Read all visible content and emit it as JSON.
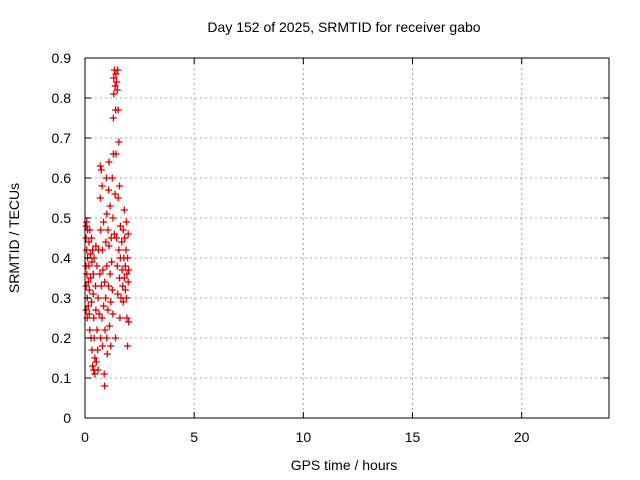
{
  "chart_data": {
    "type": "scatter",
    "title": "Day 152 of 2025, SRMTID for receiver gabo",
    "xlabel": "GPS time / hours",
    "ylabel": "SRMTID / TECUs",
    "xlim": [
      0,
      24
    ],
    "ylim": [
      0,
      0.9
    ],
    "xticks": [
      0,
      5,
      10,
      15,
      20
    ],
    "xtick_labels": [
      "0",
      "5",
      "10",
      "15",
      "20"
    ],
    "yticks": [
      0,
      0.1,
      0.2,
      0.3,
      0.4,
      0.5,
      0.6,
      0.7,
      0.8,
      0.9
    ],
    "ytick_labels": [
      "0",
      "0.1",
      "0.2",
      "0.3",
      "0.4",
      "0.5",
      "0.6",
      "0.7",
      "0.8",
      "0.9"
    ],
    "grid": true,
    "legend": false,
    "marker": "plus",
    "color": "#dd0000",
    "points": [
      [
        0.05,
        0.48
      ],
      [
        0.05,
        0.45
      ],
      [
        0.05,
        0.38
      ],
      [
        0.05,
        0.33
      ],
      [
        0.05,
        0.27
      ],
      [
        0.08,
        0.49
      ],
      [
        0.08,
        0.42
      ],
      [
        0.08,
        0.36
      ],
      [
        0.1,
        0.3
      ],
      [
        0.1,
        0.25
      ],
      [
        0.12,
        0.47
      ],
      [
        0.12,
        0.4
      ],
      [
        0.15,
        0.34
      ],
      [
        0.15,
        0.28
      ],
      [
        0.18,
        0.44
      ],
      [
        0.18,
        0.38
      ],
      [
        0.2,
        0.32
      ],
      [
        0.2,
        0.26
      ],
      [
        0.22,
        0.47
      ],
      [
        0.22,
        0.22
      ],
      [
        0.25,
        0.41
      ],
      [
        0.25,
        0.35
      ],
      [
        0.28,
        0.2
      ],
      [
        0.3,
        0.45
      ],
      [
        0.3,
        0.29
      ],
      [
        0.32,
        0.39
      ],
      [
        0.32,
        0.17
      ],
      [
        0.35,
        0.13
      ],
      [
        0.35,
        0.42
      ],
      [
        0.38,
        0.36
      ],
      [
        0.38,
        0.31
      ],
      [
        0.4,
        0.12
      ],
      [
        0.4,
        0.25
      ],
      [
        0.42,
        0.4
      ],
      [
        0.42,
        0.2
      ],
      [
        0.45,
        0.15
      ],
      [
        0.45,
        0.11
      ],
      [
        0.48,
        0.33
      ],
      [
        0.5,
        0.43
      ],
      [
        0.5,
        0.27
      ],
      [
        0.52,
        0.14
      ],
      [
        0.55,
        0.38
      ],
      [
        0.55,
        0.22
      ],
      [
        0.58,
        0.17
      ],
      [
        0.6,
        0.3
      ],
      [
        0.6,
        0.12
      ],
      [
        0.62,
        0.42
      ],
      [
        0.65,
        0.26
      ],
      [
        0.68,
        0.36
      ],
      [
        0.7,
        0.63
      ],
      [
        0.7,
        0.55
      ],
      [
        0.72,
        0.2
      ],
      [
        0.72,
        0.47
      ],
      [
        0.75,
        0.62
      ],
      [
        0.75,
        0.33
      ],
      [
        0.78,
        0.58
      ],
      [
        0.78,
        0.25
      ],
      [
        0.8,
        0.42
      ],
      [
        0.8,
        0.18
      ],
      [
        0.82,
        0.37
      ],
      [
        0.85,
        0.28
      ],
      [
        0.85,
        0.49
      ],
      [
        0.88,
        0.11
      ],
      [
        0.9,
        0.08
      ],
      [
        0.9,
        0.34
      ],
      [
        0.92,
        0.22
      ],
      [
        0.95,
        0.44
      ],
      [
        0.95,
        0.3
      ],
      [
        0.98,
        0.6
      ],
      [
        1.0,
        0.51
      ],
      [
        1.0,
        0.38
      ],
      [
        1.0,
        0.2
      ],
      [
        1.02,
        0.16
      ],
      [
        1.05,
        0.47
      ],
      [
        1.05,
        0.27
      ],
      [
        1.08,
        0.57
      ],
      [
        1.08,
        0.33
      ],
      [
        1.1,
        0.64
      ],
      [
        1.1,
        0.43
      ],
      [
        1.12,
        0.23
      ],
      [
        1.15,
        0.53
      ],
      [
        1.15,
        0.36
      ],
      [
        1.18,
        0.29
      ],
      [
        1.18,
        0.18
      ],
      [
        1.2,
        0.45
      ],
      [
        1.22,
        0.39
      ],
      [
        1.25,
        0.6
      ],
      [
        1.25,
        0.32
      ],
      [
        1.28,
        0.5
      ],
      [
        1.28,
        0.26
      ],
      [
        1.3,
        0.75
      ],
      [
        1.3,
        0.66
      ],
      [
        1.32,
        0.85
      ],
      [
        1.32,
        0.81
      ],
      [
        1.35,
        0.87
      ],
      [
        1.35,
        0.46
      ],
      [
        1.38,
        0.83
      ],
      [
        1.38,
        0.56
      ],
      [
        1.4,
        0.77
      ],
      [
        1.4,
        0.2
      ],
      [
        1.42,
        0.86
      ],
      [
        1.42,
        0.66
      ],
      [
        1.45,
        0.84
      ],
      [
        1.45,
        0.45
      ],
      [
        1.48,
        0.82
      ],
      [
        1.48,
        0.38
      ],
      [
        1.5,
        0.87
      ],
      [
        1.5,
        0.31
      ],
      [
        1.52,
        0.77
      ],
      [
        1.52,
        0.55
      ],
      [
        1.55,
        0.69
      ],
      [
        1.55,
        0.42
      ],
      [
        1.58,
        0.58
      ],
      [
        1.58,
        0.35
      ],
      [
        1.6,
        0.25
      ],
      [
        1.62,
        0.48
      ],
      [
        1.62,
        0.4
      ],
      [
        1.65,
        0.3
      ],
      [
        1.68,
        0.44
      ],
      [
        1.7,
        0.37
      ],
      [
        1.72,
        0.33
      ],
      [
        1.75,
        0.47
      ],
      [
        1.75,
        0.29
      ],
      [
        1.78,
        0.4
      ],
      [
        1.8,
        0.35
      ],
      [
        1.8,
        0.52
      ],
      [
        1.82,
        0.45
      ],
      [
        1.85,
        0.32
      ],
      [
        1.85,
        0.38
      ],
      [
        1.88,
        0.42
      ],
      [
        1.9,
        0.49
      ],
      [
        1.9,
        0.3
      ],
      [
        1.92,
        0.36
      ],
      [
        1.92,
        0.25
      ],
      [
        1.95,
        0.4
      ],
      [
        1.95,
        0.18
      ],
      [
        1.98,
        0.46
      ],
      [
        1.98,
        0.34
      ],
      [
        2.0,
        0.37
      ],
      [
        2.0,
        0.24
      ]
    ]
  }
}
